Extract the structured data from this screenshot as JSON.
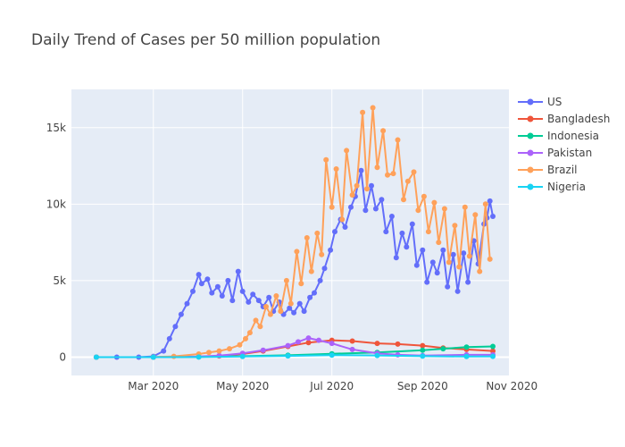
{
  "chart_data": {
    "type": "line",
    "title": "Daily Trend of Cases per 50 million population",
    "xlabel": "",
    "ylabel": "",
    "x_range": [
      "2020-01-05",
      "2020-10-30"
    ],
    "ylim": [
      -1200,
      17500
    ],
    "x_ticks": [
      {
        "date": "2020-03-01",
        "label": "Mar 2020"
      },
      {
        "date": "2020-05-01",
        "label": "May 2020"
      },
      {
        "date": "2020-07-01",
        "label": "Jul 2020"
      },
      {
        "date": "2020-09-01",
        "label": "Sep 2020"
      },
      {
        "date": "2020-11-01",
        "label": "Nov 2020"
      }
    ],
    "y_ticks": [
      {
        "value": 0,
        "label": "0"
      },
      {
        "value": 5000,
        "label": "5k"
      },
      {
        "value": 10000,
        "label": "10k"
      },
      {
        "value": 15000,
        "label": "15k"
      }
    ],
    "grid": true,
    "legend_position": "right",
    "series": [
      {
        "name": "US",
        "color": "#636efa",
        "x": [
          "2020-01-22",
          "2020-02-05",
          "2020-02-20",
          "2020-03-01",
          "2020-03-08",
          "2020-03-12",
          "2020-03-16",
          "2020-03-20",
          "2020-03-24",
          "2020-03-28",
          "2020-04-01",
          "2020-04-03",
          "2020-04-07",
          "2020-04-10",
          "2020-04-14",
          "2020-04-17",
          "2020-04-21",
          "2020-04-24",
          "2020-04-28",
          "2020-05-01",
          "2020-05-05",
          "2020-05-08",
          "2020-05-12",
          "2020-05-15",
          "2020-05-19",
          "2020-05-22",
          "2020-05-26",
          "2020-05-29",
          "2020-06-02",
          "2020-06-05",
          "2020-06-09",
          "2020-06-12",
          "2020-06-16",
          "2020-06-19",
          "2020-06-23",
          "2020-06-26",
          "2020-06-30",
          "2020-07-03",
          "2020-07-07",
          "2020-07-10",
          "2020-07-14",
          "2020-07-17",
          "2020-07-21",
          "2020-07-24",
          "2020-07-28",
          "2020-07-31",
          "2020-08-04",
          "2020-08-07",
          "2020-08-11",
          "2020-08-14",
          "2020-08-18",
          "2020-08-21",
          "2020-08-25",
          "2020-08-28",
          "2020-09-01",
          "2020-09-04",
          "2020-09-08",
          "2020-09-11",
          "2020-09-15",
          "2020-09-18",
          "2020-09-22",
          "2020-09-25",
          "2020-09-29",
          "2020-10-02",
          "2020-10-06",
          "2020-10-09",
          "2020-10-13",
          "2020-10-15",
          "2020-10-17",
          "2020-10-19"
        ],
        "y": [
          0,
          0,
          0,
          50,
          400,
          1200,
          2000,
          2800,
          3500,
          4300,
          5400,
          4800,
          5100,
          4200,
          4600,
          4000,
          5000,
          3700,
          5600,
          4300,
          3600,
          4100,
          3700,
          3300,
          3900,
          3000,
          3600,
          2800,
          3200,
          2900,
          3500,
          3000,
          3900,
          4200,
          5000,
          5800,
          7000,
          8200,
          9000,
          8500,
          9800,
          10500,
          12200,
          9600,
          11200,
          9700,
          10300,
          8200,
          9200,
          6500,
          8100,
          7200,
          8700,
          6000,
          7000,
          4900,
          6200,
          5500,
          7000,
          4600,
          6700,
          4300,
          6800,
          4900,
          7600,
          6100,
          8700,
          9100,
          10200,
          9200
        ]
      },
      {
        "name": "Bangladesh",
        "color": "#ef553b",
        "x": [
          "2020-01-22",
          "2020-03-01",
          "2020-04-01",
          "2020-04-15",
          "2020-05-01",
          "2020-05-15",
          "2020-06-01",
          "2020-06-15",
          "2020-07-01",
          "2020-07-15",
          "2020-08-01",
          "2020-08-15",
          "2020-09-01",
          "2020-09-15",
          "2020-10-01",
          "2020-10-19"
        ],
        "y": [
          0,
          0,
          20,
          80,
          200,
          400,
          700,
          950,
          1100,
          1050,
          900,
          850,
          750,
          600,
          500,
          400
        ]
      },
      {
        "name": "Indonesia",
        "color": "#00cc96",
        "x": [
          "2020-01-22",
          "2020-03-01",
          "2020-04-01",
          "2020-05-01",
          "2020-06-01",
          "2020-07-01",
          "2020-08-01",
          "2020-09-01",
          "2020-09-15",
          "2020-10-01",
          "2020-10-19"
        ],
        "y": [
          0,
          0,
          20,
          60,
          120,
          220,
          300,
          450,
          550,
          650,
          700
        ]
      },
      {
        "name": "Pakistan",
        "color": "#ab63fa",
        "x": [
          "2020-01-22",
          "2020-03-01",
          "2020-04-01",
          "2020-04-15",
          "2020-05-01",
          "2020-05-15",
          "2020-06-01",
          "2020-06-08",
          "2020-06-15",
          "2020-06-22",
          "2020-07-01",
          "2020-07-15",
          "2020-08-01",
          "2020-08-15",
          "2020-09-01",
          "2020-10-01",
          "2020-10-19"
        ],
        "y": [
          0,
          0,
          40,
          100,
          250,
          450,
          750,
          1000,
          1250,
          1100,
          900,
          500,
          250,
          150,
          100,
          150,
          150
        ]
      },
      {
        "name": "Brazil",
        "color": "#FFA15A",
        "x": [
          "2020-01-22",
          "2020-03-01",
          "2020-03-15",
          "2020-04-01",
          "2020-04-08",
          "2020-04-15",
          "2020-04-22",
          "2020-04-29",
          "2020-05-03",
          "2020-05-06",
          "2020-05-10",
          "2020-05-13",
          "2020-05-17",
          "2020-05-20",
          "2020-05-24",
          "2020-05-27",
          "2020-05-31",
          "2020-06-03",
          "2020-06-07",
          "2020-06-10",
          "2020-06-14",
          "2020-06-17",
          "2020-06-21",
          "2020-06-24",
          "2020-06-27",
          "2020-07-01",
          "2020-07-04",
          "2020-07-08",
          "2020-07-11",
          "2020-07-15",
          "2020-07-18",
          "2020-07-22",
          "2020-07-25",
          "2020-07-29",
          "2020-08-01",
          "2020-08-05",
          "2020-08-08",
          "2020-08-12",
          "2020-08-15",
          "2020-08-19",
          "2020-08-22",
          "2020-08-26",
          "2020-08-29",
          "2020-09-02",
          "2020-09-05",
          "2020-09-09",
          "2020-09-12",
          "2020-09-16",
          "2020-09-19",
          "2020-09-23",
          "2020-09-26",
          "2020-09-30",
          "2020-10-03",
          "2020-10-07",
          "2020-10-10",
          "2020-10-14",
          "2020-10-17"
        ],
        "y": [
          0,
          5,
          50,
          200,
          300,
          400,
          550,
          800,
          1200,
          1600,
          2400,
          2000,
          3300,
          2800,
          4000,
          3000,
          5000,
          3500,
          6900,
          4800,
          7800,
          5600,
          8100,
          6700,
          12900,
          9800,
          12300,
          9000,
          13500,
          10600,
          11200,
          16000,
          11000,
          16300,
          12400,
          14800,
          11900,
          12000,
          14200,
          10300,
          11500,
          12100,
          9600,
          10500,
          8200,
          10100,
          7500,
          9700,
          6200,
          8600,
          5900,
          9800,
          6600,
          9300,
          5600,
          10000,
          6400
        ]
      },
      {
        "name": "Nigeria",
        "color": "#19d3f3",
        "x": [
          "2020-01-22",
          "2020-03-01",
          "2020-04-01",
          "2020-05-01",
          "2020-06-01",
          "2020-07-01",
          "2020-08-01",
          "2020-09-01",
          "2020-10-01",
          "2020-10-19"
        ],
        "y": [
          0,
          0,
          5,
          40,
          80,
          130,
          110,
          60,
          40,
          50
        ]
      }
    ]
  }
}
